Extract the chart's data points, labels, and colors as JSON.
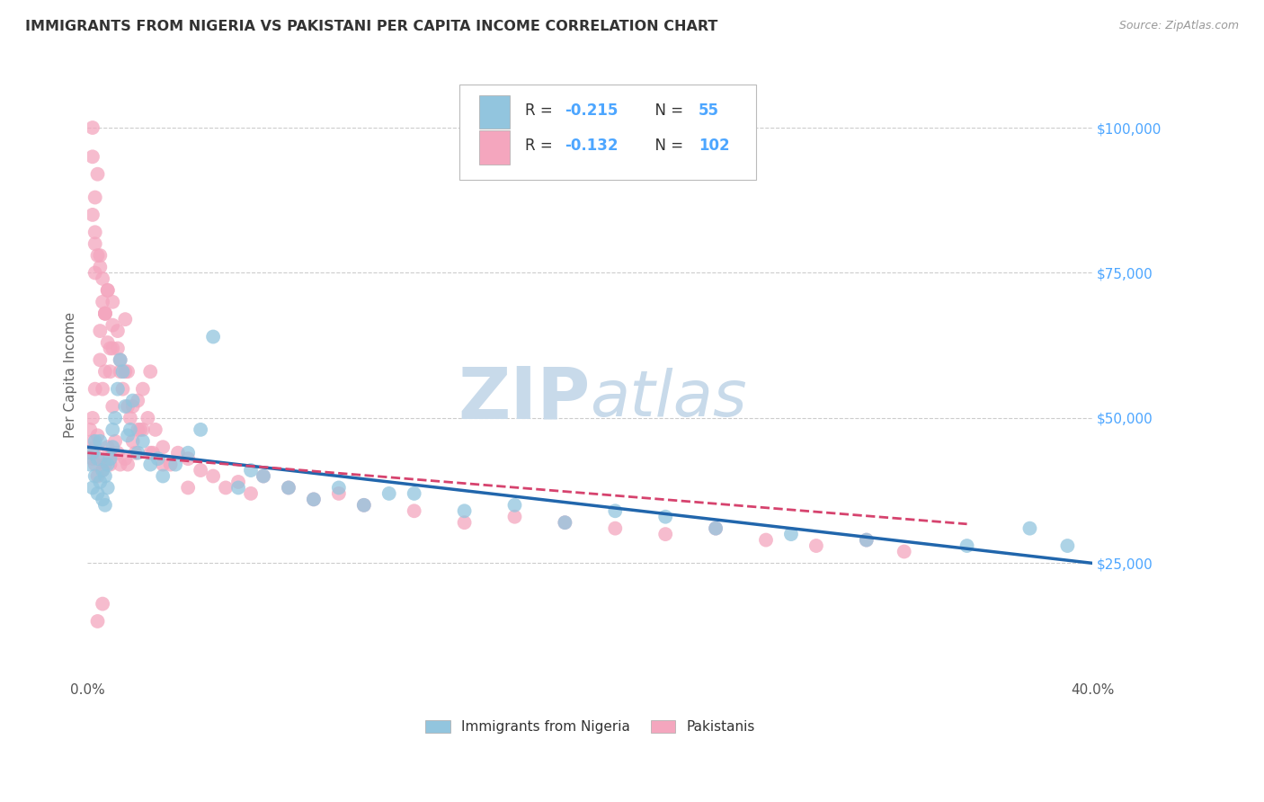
{
  "title": "IMMIGRANTS FROM NIGERIA VS PAKISTANI PER CAPITA INCOME CORRELATION CHART",
  "source": "Source: ZipAtlas.com",
  "ylabel": "Per Capita Income",
  "xlim": [
    0.0,
    0.4
  ],
  "ylim": [
    5000,
    110000
  ],
  "yticks": [
    25000,
    50000,
    75000,
    100000
  ],
  "ytick_labels": [
    "$25,000",
    "$50,000",
    "$75,000",
    "$100,000"
  ],
  "legend_sublabel1": "Immigrants from Nigeria",
  "legend_sublabel2": "Pakistanis",
  "blue_color": "#92c5de",
  "pink_color": "#f4a6be",
  "line_blue": "#2166ac",
  "line_pink": "#d6436e",
  "watermark_zip": "ZIP",
  "watermark_atlas": "atlas",
  "watermark_color": "#c8daea",
  "title_color": "#333333",
  "source_color": "#999999",
  "ytick_color": "#4da6ff",
  "text_color": "#333333",
  "legend_text_color": "#4da6ff",
  "nigeria_x": [
    0.001,
    0.002,
    0.002,
    0.003,
    0.003,
    0.004,
    0.004,
    0.005,
    0.005,
    0.006,
    0.006,
    0.007,
    0.007,
    0.008,
    0.008,
    0.009,
    0.01,
    0.01,
    0.011,
    0.012,
    0.013,
    0.014,
    0.015,
    0.016,
    0.017,
    0.018,
    0.02,
    0.022,
    0.025,
    0.028,
    0.03,
    0.035,
    0.04,
    0.045,
    0.05,
    0.06,
    0.065,
    0.07,
    0.08,
    0.09,
    0.1,
    0.11,
    0.12,
    0.13,
    0.15,
    0.17,
    0.19,
    0.21,
    0.23,
    0.25,
    0.28,
    0.31,
    0.35,
    0.375,
    0.39
  ],
  "nigeria_y": [
    42000,
    38000,
    44000,
    40000,
    46000,
    37000,
    43000,
    39000,
    46000,
    41000,
    36000,
    40000,
    35000,
    42000,
    38000,
    43000,
    45000,
    48000,
    50000,
    55000,
    60000,
    58000,
    52000,
    47000,
    48000,
    53000,
    44000,
    46000,
    42000,
    43000,
    40000,
    42000,
    44000,
    48000,
    64000,
    38000,
    41000,
    40000,
    38000,
    36000,
    38000,
    35000,
    37000,
    37000,
    34000,
    35000,
    32000,
    34000,
    33000,
    31000,
    30000,
    29000,
    28000,
    31000,
    28000
  ],
  "pakistan_x": [
    0.001,
    0.001,
    0.002,
    0.002,
    0.002,
    0.003,
    0.003,
    0.003,
    0.004,
    0.004,
    0.005,
    0.005,
    0.005,
    0.006,
    0.006,
    0.007,
    0.007,
    0.007,
    0.008,
    0.008,
    0.008,
    0.009,
    0.009,
    0.01,
    0.01,
    0.01,
    0.011,
    0.012,
    0.012,
    0.013,
    0.013,
    0.014,
    0.015,
    0.015,
    0.016,
    0.016,
    0.017,
    0.018,
    0.019,
    0.02,
    0.021,
    0.022,
    0.024,
    0.025,
    0.027,
    0.03,
    0.033,
    0.036,
    0.04,
    0.045,
    0.05,
    0.055,
    0.06,
    0.065,
    0.07,
    0.08,
    0.09,
    0.1,
    0.11,
    0.13,
    0.15,
    0.17,
    0.19,
    0.21,
    0.23,
    0.25,
    0.27,
    0.29,
    0.31,
    0.325,
    0.003,
    0.005,
    0.007,
    0.01,
    0.013,
    0.016,
    0.02,
    0.025,
    0.03,
    0.04,
    0.002,
    0.003,
    0.004,
    0.006,
    0.008,
    0.01,
    0.012,
    0.015,
    0.018,
    0.022,
    0.026,
    0.003,
    0.004,
    0.006,
    0.002,
    0.003,
    0.005,
    0.007,
    0.009,
    0.002,
    0.004,
    0.006
  ],
  "pakistan_y": [
    48000,
    44000,
    46000,
    43000,
    50000,
    55000,
    45000,
    42000,
    47000,
    40000,
    65000,
    60000,
    43000,
    55000,
    41000,
    68000,
    58000,
    42000,
    72000,
    63000,
    45000,
    58000,
    42000,
    70000,
    52000,
    44000,
    46000,
    65000,
    44000,
    60000,
    42000,
    55000,
    67000,
    43000,
    58000,
    42000,
    50000,
    46000,
    44000,
    53000,
    48000,
    55000,
    50000,
    58000,
    48000,
    45000,
    42000,
    44000,
    43000,
    41000,
    40000,
    38000,
    39000,
    37000,
    40000,
    38000,
    36000,
    37000,
    35000,
    34000,
    32000,
    33000,
    32000,
    31000,
    30000,
    31000,
    29000,
    28000,
    29000,
    27000,
    75000,
    78000,
    68000,
    62000,
    58000,
    52000,
    48000,
    44000,
    42000,
    38000,
    85000,
    80000,
    92000,
    70000,
    72000,
    66000,
    62000,
    58000,
    52000,
    48000,
    44000,
    88000,
    78000,
    74000,
    95000,
    82000,
    76000,
    68000,
    62000,
    100000,
    15000,
    18000
  ]
}
